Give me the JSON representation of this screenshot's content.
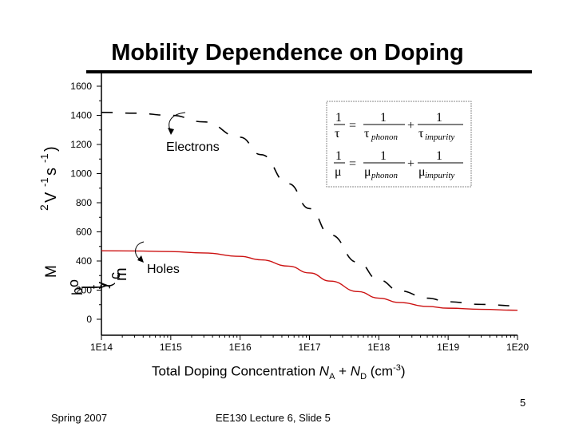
{
  "slide": {
    "title": "Mobility Dependence on Doping",
    "page_number": "5",
    "footer_left": "Spring 2007",
    "footer_center": "EE130 Lecture 6, Slide 5"
  },
  "xlabel": {
    "prefix": "Total Doping Concentration ",
    "na": "N",
    "na_sub": "A",
    "plus": " + ",
    "nd": "N",
    "nd_sub": "D",
    "unit_open": " (cm",
    "unit_exp": "-3",
    "unit_close": ")"
  },
  "ylabel_fragments": [
    "M",
    "o",
    "b",
    "i",
    "l",
    "i",
    "t",
    "y",
    "(",
    "c",
    "m",
    "2",
    "V",
    "-1",
    "s",
    "-1",
    ")"
  ],
  "formula": {
    "row1": {
      "lhs_num": "1",
      "lhs_den": "τ",
      "t1_num": "1",
      "t1_den": "τ",
      "t1_sub": "phonon",
      "t2_num": "1",
      "t2_den": "τ",
      "t2_sub": "impurity"
    },
    "row2": {
      "lhs_num": "1",
      "lhs_den": "μ",
      "t1_num": "1",
      "t1_den": "μ",
      "t1_sub": "phonon",
      "t2_num": "1",
      "t2_den": "μ",
      "t2_sub": "impurity"
    },
    "eq": "=",
    "plus": "+"
  },
  "chart_data": {
    "type": "line",
    "xscale": "log",
    "xlim": [
      100000000000000.0,
      1e+20
    ],
    "ylim": [
      0,
      1600
    ],
    "x_ticks": [
      "1E14",
      "1E15",
      "1E16",
      "1E17",
      "1E18",
      "1E19",
      "1E20"
    ],
    "y_ticks": [
      "0",
      "200",
      "400",
      "600",
      "800",
      "1000",
      "1200",
      "1400",
      "1600"
    ],
    "series": [
      {
        "name": "Electrons",
        "style": "dashed",
        "color": "#000000",
        "x": [
          100000000000000.0,
          300000000000000.0,
          1000000000000000.0,
          3000000000000000.0,
          1e+16,
          2e+16,
          5e+16,
          1e+17,
          2e+17,
          5e+17,
          1e+18,
          2e+18,
          5e+18,
          1e+19,
          3e+19,
          1e+20
        ],
        "y": [
          1420,
          1415,
          1400,
          1355,
          1250,
          1130,
          930,
          760,
          580,
          390,
          270,
          195,
          145,
          120,
          102,
          92
        ]
      },
      {
        "name": "Holes",
        "style": "solid",
        "color": "#cc1111",
        "x": [
          100000000000000.0,
          300000000000000.0,
          1000000000000000.0,
          3000000000000000.0,
          1e+16,
          2e+16,
          5e+16,
          1e+17,
          2e+17,
          5e+17,
          1e+18,
          2e+18,
          5e+18,
          1e+19,
          3e+19,
          1e+20
        ],
        "y": [
          470,
          469,
          465,
          455,
          432,
          408,
          365,
          318,
          262,
          190,
          145,
          115,
          88,
          76,
          68,
          62
        ]
      }
    ],
    "annotations": [
      {
        "text": "Electrons"
      },
      {
        "text": "Holes"
      }
    ]
  }
}
